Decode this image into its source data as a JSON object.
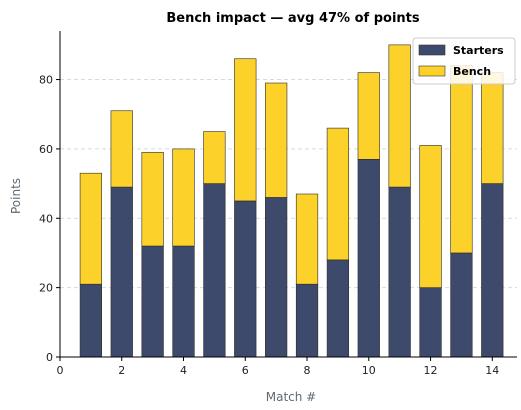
{
  "chart_data": {
    "type": "bar",
    "stacked": true,
    "title": "Bench impact — avg 47% of points",
    "xlabel": "Match #",
    "ylabel": "Points",
    "x": [
      1,
      2,
      3,
      4,
      5,
      6,
      7,
      8,
      9,
      10,
      11,
      12,
      13,
      14
    ],
    "xlim": [
      0,
      14.8
    ],
    "ylim": [
      0,
      94
    ],
    "xticks": [
      0,
      2,
      4,
      6,
      8,
      10,
      12,
      14
    ],
    "yticks": [
      0,
      20,
      40,
      60,
      80
    ],
    "grid": "horizontal dashed",
    "legend_position": "top-right",
    "series": [
      {
        "name": "Starters",
        "color": "#3d4a6b",
        "values": [
          21,
          49,
          32,
          32,
          50,
          45,
          46,
          21,
          28,
          57,
          49,
          20,
          30,
          50
        ]
      },
      {
        "name": "Bench",
        "color": "#fcd12a",
        "values": [
          32,
          22,
          27,
          28,
          15,
          41,
          33,
          26,
          38,
          25,
          41,
          41,
          54,
          32
        ]
      }
    ]
  }
}
